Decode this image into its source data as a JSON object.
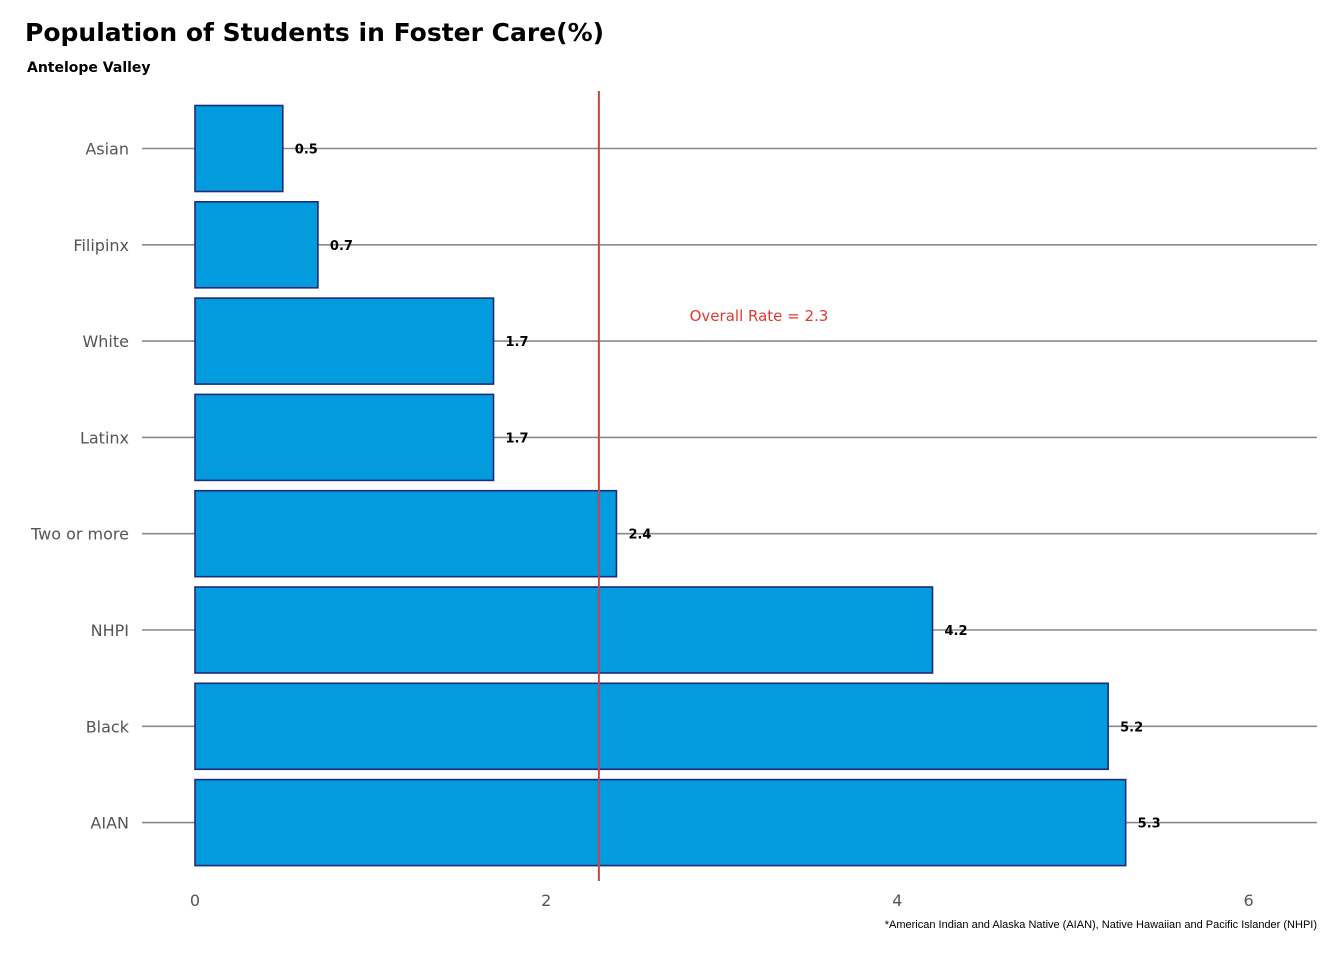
{
  "chart_data": {
    "type": "bar",
    "orientation": "horizontal",
    "title": "Population of Students in Foster Care(%)",
    "subtitle": "Antelope Valley",
    "categories": [
      "Asian",
      "Filipinx",
      "White",
      "Latinx",
      "Two or more",
      "NHPI",
      "Black",
      "AIAN"
    ],
    "values": [
      0.5,
      0.7,
      1.7,
      1.7,
      2.4,
      4.2,
      5.2,
      5.3
    ],
    "data_labels": [
      "0.5",
      "0.7",
      "1.7",
      "1.7",
      "2.4",
      "4.2",
      "5.2",
      "5.3"
    ],
    "xlim": [
      0,
      6.4
    ],
    "xticks": [
      0,
      2,
      4,
      6
    ],
    "xtick_labels": [
      "0",
      "2",
      "4",
      "6"
    ],
    "grid": "horizontal major lines at each category",
    "reference_line": {
      "value": 2.3,
      "label": "Overall Rate = 2.3",
      "color": "#cc4444",
      "label_color": "#e03a2f"
    },
    "bar_fill": "#029cde",
    "bar_outline": "#1f2a7a",
    "footnote": "*American Indian and Alaska Native (AIAN), Native Hawaiian and Pacific Islander (NHPI)"
  }
}
